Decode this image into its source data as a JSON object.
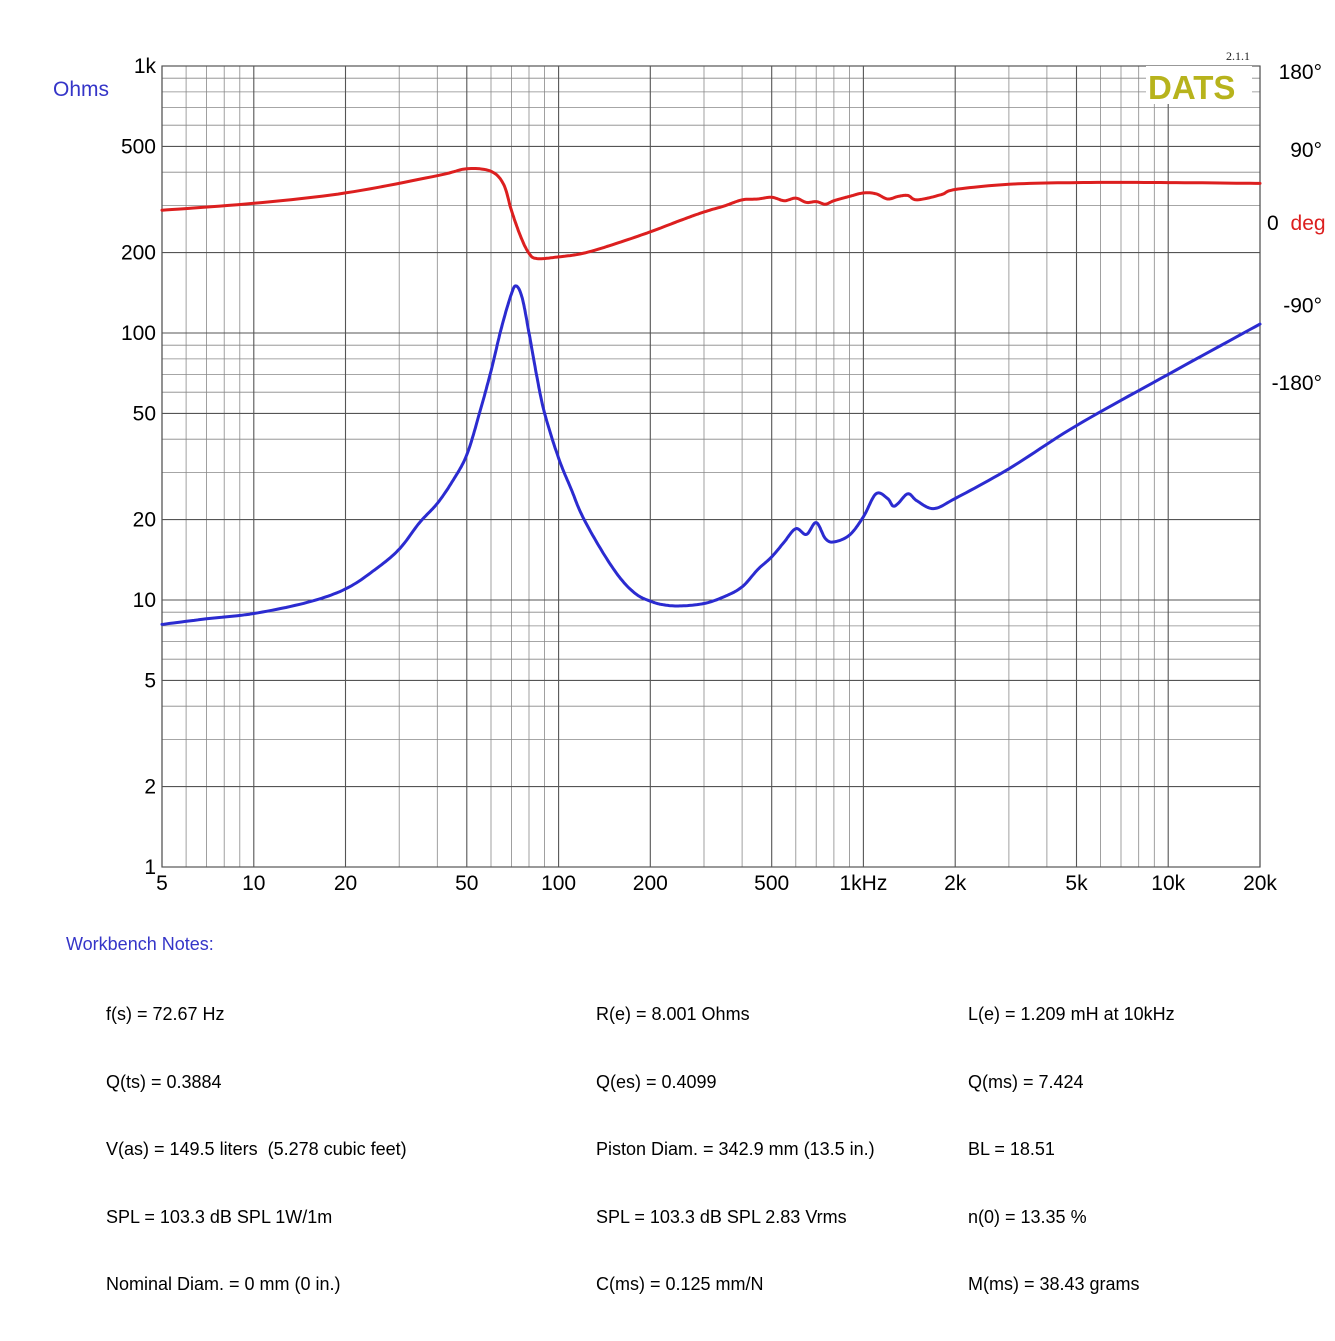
{
  "chart_data": {
    "type": "line",
    "x_scale": "log",
    "y_scale": "log",
    "xlim": [
      5,
      20000
    ],
    "ylim": [
      1,
      1000
    ],
    "y2lim": [
      -180,
      180
    ],
    "x_ticks": [
      {
        "value": 5,
        "label": "5"
      },
      {
        "value": 10,
        "label": "10"
      },
      {
        "value": 20,
        "label": "20"
      },
      {
        "value": 50,
        "label": "50"
      },
      {
        "value": 100,
        "label": "100"
      },
      {
        "value": 200,
        "label": "200"
      },
      {
        "value": 500,
        "label": "500"
      },
      {
        "value": 1000,
        "label": "1kHz"
      },
      {
        "value": 2000,
        "label": "2k"
      },
      {
        "value": 5000,
        "label": "5k"
      },
      {
        "value": 10000,
        "label": "10k"
      },
      {
        "value": 20000,
        "label": "20k"
      }
    ],
    "y_ticks": [
      {
        "value": 1,
        "label": "1"
      },
      {
        "value": 2,
        "label": "2"
      },
      {
        "value": 5,
        "label": "5"
      },
      {
        "value": 10,
        "label": "10"
      },
      {
        "value": 20,
        "label": "20"
      },
      {
        "value": 50,
        "label": "50"
      },
      {
        "value": 100,
        "label": "100"
      },
      {
        "value": 200,
        "label": "200"
      },
      {
        "value": 500,
        "label": "500"
      },
      {
        "value": 1000,
        "label": "1k"
      }
    ],
    "y2_ticks": [
      {
        "value": 180,
        "label": "180°"
      },
      {
        "value": 90,
        "label": "90°"
      },
      {
        "value": -90,
        "label": "-90°"
      },
      {
        "value": -180,
        "label": "-180°"
      }
    ],
    "ylabel": "Ohms",
    "y2label_num": "0",
    "y2label_unit": "deg",
    "brand": "DATS",
    "version": "2.1.1",
    "grid": true,
    "series": [
      {
        "axis": "left",
        "color": "#2b2bd0",
        "points": [
          [
            5,
            8.1
          ],
          [
            7,
            8.5
          ],
          [
            10,
            8.9
          ],
          [
            15,
            9.8
          ],
          [
            20,
            11.0
          ],
          [
            25,
            13.0
          ],
          [
            30,
            15.5
          ],
          [
            35,
            19.5
          ],
          [
            40,
            23.0
          ],
          [
            45,
            28.0
          ],
          [
            50,
            35.0
          ],
          [
            55,
            50.0
          ],
          [
            60,
            72.0
          ],
          [
            65,
            105.0
          ],
          [
            70,
            140.0
          ],
          [
            72.67,
            150.0
          ],
          [
            76,
            135.0
          ],
          [
            80,
            100.0
          ],
          [
            85,
            68.0
          ],
          [
            90,
            50.0
          ],
          [
            100,
            34.0
          ],
          [
            110,
            26.0
          ],
          [
            120,
            20.5
          ],
          [
            140,
            15.0
          ],
          [
            160,
            12.0
          ],
          [
            180,
            10.5
          ],
          [
            200,
            9.9
          ],
          [
            220,
            9.6
          ],
          [
            250,
            9.5
          ],
          [
            300,
            9.7
          ],
          [
            350,
            10.3
          ],
          [
            400,
            11.2
          ],
          [
            450,
            13.0
          ],
          [
            500,
            14.5
          ],
          [
            550,
            16.5
          ],
          [
            600,
            18.5
          ],
          [
            650,
            17.6
          ],
          [
            700,
            19.5
          ],
          [
            750,
            17.0
          ],
          [
            800,
            16.5
          ],
          [
            900,
            17.5
          ],
          [
            1000,
            20.5
          ],
          [
            1100,
            25.0
          ],
          [
            1200,
            24.0
          ],
          [
            1250,
            22.5
          ],
          [
            1300,
            23.0
          ],
          [
            1400,
            25.0
          ],
          [
            1500,
            23.5
          ],
          [
            1700,
            22.0
          ],
          [
            2000,
            24.0
          ],
          [
            3000,
            31.0
          ],
          [
            5000,
            45.0
          ],
          [
            10000,
            70.0
          ],
          [
            20000,
            108.0
          ]
        ]
      },
      {
        "axis": "right",
        "color": "#dc1f1f",
        "points": [
          [
            5,
            20
          ],
          [
            10,
            28
          ],
          [
            20,
            40
          ],
          [
            40,
            60
          ],
          [
            50,
            68
          ],
          [
            60,
            65
          ],
          [
            66,
            50
          ],
          [
            70,
            20
          ],
          [
            75,
            -10
          ],
          [
            80,
            -30
          ],
          [
            85,
            -36
          ],
          [
            100,
            -34
          ],
          [
            120,
            -30
          ],
          [
            150,
            -20
          ],
          [
            200,
            -5
          ],
          [
            250,
            8
          ],
          [
            300,
            18
          ],
          [
            350,
            25
          ],
          [
            400,
            32
          ],
          [
            450,
            33
          ],
          [
            500,
            35
          ],
          [
            550,
            31
          ],
          [
            600,
            34
          ],
          [
            650,
            29
          ],
          [
            700,
            30
          ],
          [
            750,
            27
          ],
          [
            800,
            31
          ],
          [
            900,
            36
          ],
          [
            1000,
            40
          ],
          [
            1100,
            39
          ],
          [
            1200,
            33
          ],
          [
            1300,
            36
          ],
          [
            1400,
            37
          ],
          [
            1500,
            32
          ],
          [
            1800,
            38
          ],
          [
            2000,
            44
          ],
          [
            3000,
            50
          ],
          [
            5000,
            52
          ],
          [
            10000,
            52
          ],
          [
            20000,
            51
          ]
        ]
      }
    ]
  },
  "notes": {
    "title": "Workbench Notes:",
    "col1": [
      "f(s) = 72.67 Hz",
      "Q(ts) = 0.3884",
      "V(as) = 149.5 liters  (5.278 cubic feet)",
      "SPL = 103.3 dB SPL 1W/1m",
      "Nominal Diam. = 0 mm (0 in.)"
    ],
    "col2": [
      "R(e) = 8.001 Ohms",
      "Q(es) = 0.4099",
      "Piston Diam. = 342.9 mm (13.5 in.)",
      "SPL = 103.3 dB SPL 2.83 Vrms",
      "C(ms) = 0.125 mm/N"
    ],
    "col3": [
      "L(e) = 1.209 mH at 10kHz",
      "Q(ms) = 7.424",
      "BL = 18.51",
      "n(0) = 13.35 %",
      "M(ms) = 38.43 grams"
    ]
  }
}
